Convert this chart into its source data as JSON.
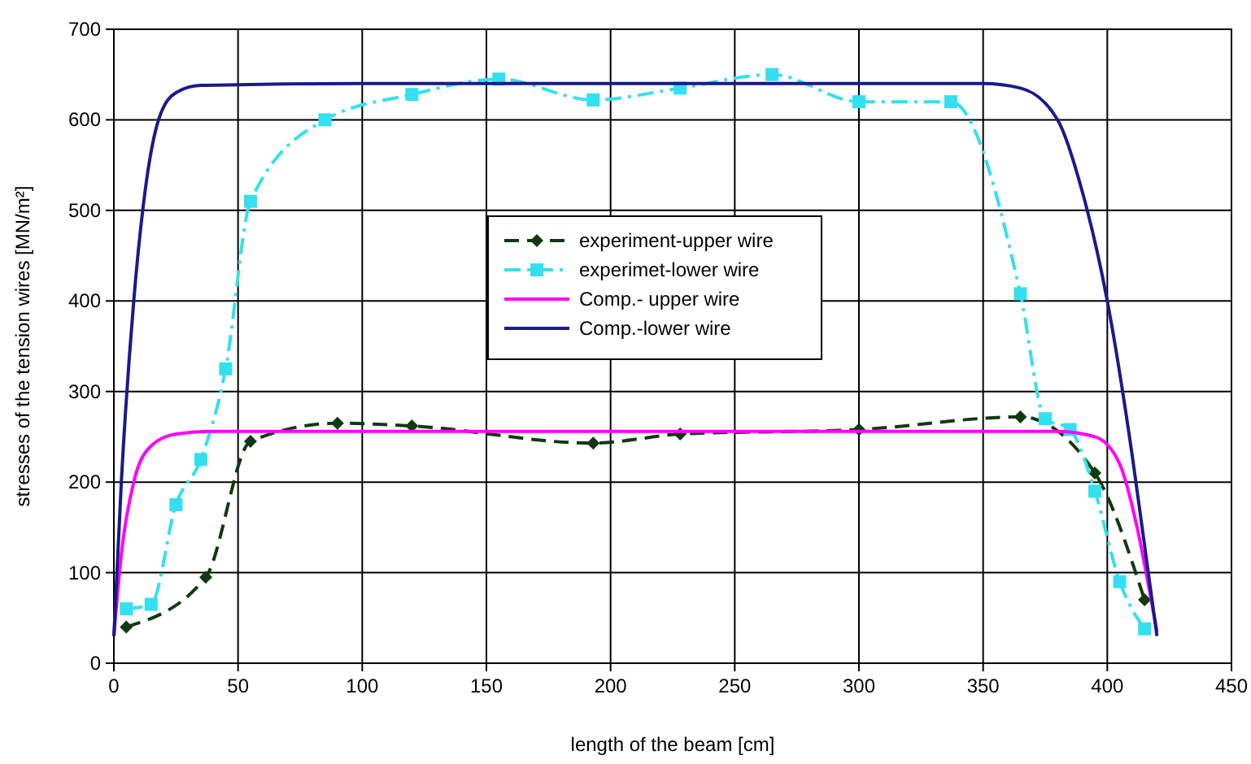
{
  "chart_data": {
    "type": "line",
    "xlabel": "length of the beam [cm]",
    "ylabel": "stresses of the tension wires [MN/m²]",
    "xlim": [
      0,
      450
    ],
    "xticks": [
      0,
      50,
      100,
      150,
      200,
      250,
      300,
      350,
      400,
      450
    ],
    "ylim": [
      0,
      700
    ],
    "yticks": [
      0,
      100,
      200,
      300,
      400,
      500,
      600,
      700
    ],
    "grid": true,
    "legend": "center",
    "series": [
      {
        "name": "experiment-upper wire",
        "color": "#0f3a0f",
        "marker": "diamond",
        "line_style": "dashed",
        "x": [
          5,
          37,
          55,
          90,
          120,
          193,
          228,
          300,
          365,
          395,
          415
        ],
        "values": [
          40,
          95,
          245,
          265,
          262,
          243,
          253,
          258,
          272,
          210,
          70
        ]
      },
      {
        "name": "experimet-lower wire",
        "color": "#33e0f0",
        "marker": "square",
        "line_style": "dotted",
        "x": [
          5,
          15,
          25,
          35,
          45,
          55,
          85,
          120,
          155,
          193,
          228,
          265,
          300,
          337,
          365,
          375,
          385,
          395,
          405,
          415
        ],
        "values": [
          60,
          65,
          175,
          225,
          325,
          510,
          600,
          628,
          645,
          622,
          635,
          650,
          620,
          620,
          408,
          270,
          258,
          190,
          90,
          38
        ]
      },
      {
        "name": "Comp.- upper wire",
        "color": "#ff00ff",
        "marker": "none",
        "line_style": "solid",
        "x": [
          0,
          3,
          8,
          15,
          25,
          40,
          380,
          395,
          405,
          412,
          417,
          420
        ],
        "values": [
          30,
          120,
          200,
          240,
          253,
          256,
          256,
          250,
          220,
          150,
          80,
          35
        ]
      },
      {
        "name": "Comp.-lower wire",
        "color": "#1a1a8c",
        "marker": "none",
        "line_style": "solid",
        "x": [
          0,
          3,
          8,
          13,
          18,
          25,
          35,
          100,
          350,
          365,
          380,
          390,
          400,
          410,
          416,
          420
        ],
        "values": [
          30,
          200,
          400,
          530,
          600,
          630,
          638,
          640,
          640,
          635,
          600,
          520,
          400,
          230,
          110,
          30
        ]
      }
    ]
  }
}
